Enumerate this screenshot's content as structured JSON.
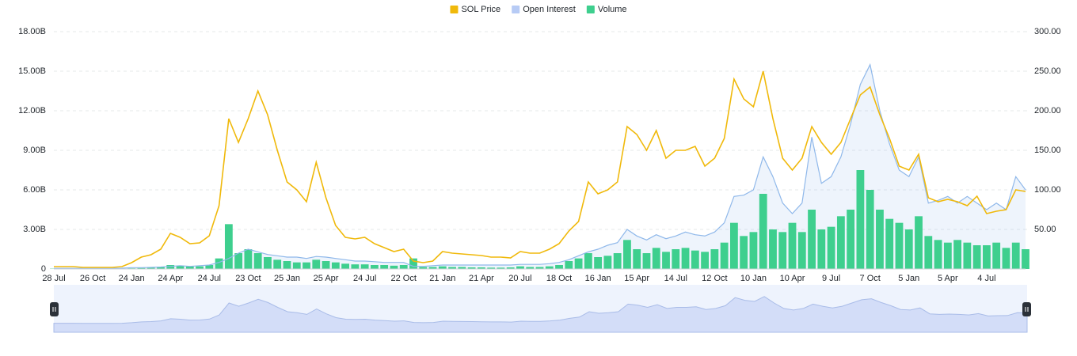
{
  "chart_data": {
    "type": "combo",
    "categories": [
      "28 Jul",
      null,
      null,
      null,
      "26 Oct",
      null,
      null,
      null,
      "24 Jan",
      null,
      null,
      null,
      "24 Apr",
      null,
      null,
      null,
      "24 Jul",
      null,
      null,
      null,
      "23 Oct",
      null,
      null,
      null,
      "25 Jan",
      null,
      null,
      null,
      "25 Apr",
      null,
      null,
      null,
      "24 Jul",
      null,
      null,
      null,
      "22 Oct",
      null,
      null,
      null,
      "21 Jan",
      null,
      null,
      null,
      "21 Apr",
      null,
      null,
      null,
      "20 Jul",
      null,
      null,
      null,
      "18 Oct",
      null,
      null,
      null,
      "16 Jan",
      null,
      null,
      null,
      "15 Apr",
      null,
      null,
      null,
      "14 Jul",
      null,
      null,
      null,
      "12 Oct",
      null,
      null,
      null,
      "10 Jan",
      null,
      null,
      null,
      "10 Apr",
      null,
      null,
      null,
      "9 Jul",
      null,
      null,
      null,
      "7 Oct",
      null,
      null,
      null,
      "5 Jan",
      null,
      null,
      null,
      "5 Apr",
      null,
      null,
      null,
      "4 Jul",
      null,
      null,
      null,
      null
    ],
    "series": [
      {
        "name": "SOL Price",
        "type": "line",
        "axis": "y2",
        "color": "#f0b90b",
        "values": [
          3,
          3,
          3,
          2,
          2,
          2,
          2,
          3,
          8,
          15,
          18,
          25,
          45,
          40,
          32,
          33,
          42,
          80,
          190,
          160,
          190,
          225,
          195,
          150,
          110,
          100,
          85,
          135,
          90,
          55,
          40,
          38,
          40,
          32,
          27,
          22,
          25,
          10,
          8,
          10,
          22,
          20,
          19,
          18,
          17,
          15,
          15,
          14,
          22,
          20,
          20,
          25,
          32,
          48,
          60,
          110,
          95,
          100,
          110,
          180,
          170,
          150,
          175,
          140,
          150,
          150,
          155,
          130,
          140,
          165,
          240,
          215,
          205,
          250,
          190,
          140,
          125,
          140,
          180,
          160,
          145,
          160,
          190,
          220,
          230,
          195,
          165,
          130,
          125,
          145,
          90,
          85,
          88,
          85,
          80,
          92,
          70,
          73,
          75,
          100,
          98
        ]
      },
      {
        "name": "Open Interest",
        "type": "area",
        "color": "#8fb8ea",
        "values": [
          50000000.0,
          50000000.0,
          50000000.0,
          50000000.0,
          50000000.0,
          50000000.0,
          50000000.0,
          60000000.0,
          100000000.0,
          100000000.0,
          120000000.0,
          150000000.0,
          200000000.0,
          250000000.0,
          200000000.0,
          250000000.0,
          300000000.0,
          500000000.0,
          800000000.0,
          1200000000.0,
          1500000000.0,
          1300000000.0,
          1100000000.0,
          1000000000.0,
          900000000.0,
          900000000.0,
          800000000.0,
          950000000.0,
          900000000.0,
          800000000.0,
          700000000.0,
          600000000.0,
          600000000.0,
          550000000.0,
          500000000.0,
          500000000.0,
          500000000.0,
          200000000.0,
          200000000.0,
          250000000.0,
          300000000.0,
          300000000.0,
          300000000.0,
          300000000.0,
          300000000.0,
          300000000.0,
          300000000.0,
          300000000.0,
          350000000.0,
          350000000.0,
          350000000.0,
          400000000.0,
          500000000.0,
          700000000.0,
          1000000000.0,
          1300000000.0,
          1500000000.0,
          1800000000.0,
          2000000000.0,
          3000000000.0,
          2500000000.0,
          2200000000.0,
          2600000000.0,
          2300000000.0,
          2500000000.0,
          2800000000.0,
          2600000000.0,
          2500000000.0,
          2800000000.0,
          3500000000.0,
          5500000000.0,
          5600000000.0,
          6000000000.0,
          8500000000.0,
          7000000000.0,
          5000000000.0,
          4200000000.0,
          5000000000.0,
          10000000000.0,
          6500000000.0,
          7000000000.0,
          8500000000.0,
          11000000000.0,
          14000000000.0,
          15500000000.0,
          12000000000.0,
          9500000000.0,
          7500000000.0,
          7000000000.0,
          8500000000.0,
          5000000000.0,
          5200000000.0,
          5500000000.0,
          5000000000.0,
          5500000000.0,
          5000000000.0,
          4500000000.0,
          5000000000.0,
          4500000000.0,
          7000000000.0,
          6000000000.0
        ]
      },
      {
        "name": "Volume",
        "type": "bar",
        "color": "#3ecf8e",
        "values": [
          20000000.0,
          20000000.0,
          20000000.0,
          20000000.0,
          20000000.0,
          20000000.0,
          20000000.0,
          30000000.0,
          50000000.0,
          80000000.0,
          100000000.0,
          150000000.0,
          300000000.0,
          250000000.0,
          200000000.0,
          200000000.0,
          300000000.0,
          800000000.0,
          3400000000.0,
          1200000000.0,
          1500000000.0,
          1200000000.0,
          900000000.0,
          700000000.0,
          600000000.0,
          500000000.0,
          500000000.0,
          700000000.0,
          600000000.0,
          500000000.0,
          400000000.0,
          350000000.0,
          350000000.0,
          300000000.0,
          300000000.0,
          250000000.0,
          300000000.0,
          800000000.0,
          150000000.0,
          150000000.0,
          200000000.0,
          150000000.0,
          150000000.0,
          120000000.0,
          120000000.0,
          100000000.0,
          100000000.0,
          120000000.0,
          200000000.0,
          150000000.0,
          150000000.0,
          200000000.0,
          300000000.0,
          600000000.0,
          800000000.0,
          1200000000.0,
          900000000.0,
          1000000000.0,
          1200000000.0,
          2200000000.0,
          1500000000.0,
          1200000000.0,
          1600000000.0,
          1300000000.0,
          1500000000.0,
          1600000000.0,
          1400000000.0,
          1300000000.0,
          1500000000.0,
          2000000000.0,
          3500000000.0,
          2500000000.0,
          2800000000.0,
          5700000000.0,
          3000000000.0,
          2800000000.0,
          3500000000.0,
          2800000000.0,
          4500000000.0,
          3000000000.0,
          3200000000.0,
          4000000000.0,
          4500000000.0,
          7500000000.0,
          6000000000.0,
          4500000000.0,
          3800000000.0,
          3500000000.0,
          3000000000.0,
          4000000000.0,
          2500000000.0,
          2200000000.0,
          2000000000.0,
          2200000000.0,
          2000000000.0,
          1800000000.0,
          1800000000.0,
          2000000000.0,
          1600000000.0,
          2000000000.0,
          1500000000.0
        ]
      }
    ],
    "ylim": [
      0,
      18000000000
    ],
    "yticks": [
      0,
      {
        "value": 3000000000,
        "label": "3.00B"
      },
      {
        "value": 6000000000,
        "label": "6.00B"
      },
      {
        "value": 9000000000,
        "label": "9.00B"
      },
      {
        "value": 12000000000,
        "label": "12.00B"
      },
      {
        "value": 15000000000,
        "label": "15.00B"
      },
      {
        "value": 18000000000,
        "label": "18.00B"
      }
    ],
    "y2lim": [
      0,
      300
    ],
    "y2ticks": [
      {
        "value": 50,
        "label": "50.00"
      },
      {
        "value": 100,
        "label": "100.00"
      },
      {
        "value": 150,
        "label": "150.00"
      },
      {
        "value": 200,
        "label": "200.00"
      },
      {
        "value": 250,
        "label": "250.00"
      },
      {
        "value": 300,
        "label": "300.00"
      }
    ],
    "grid": true,
    "legend": "top"
  }
}
